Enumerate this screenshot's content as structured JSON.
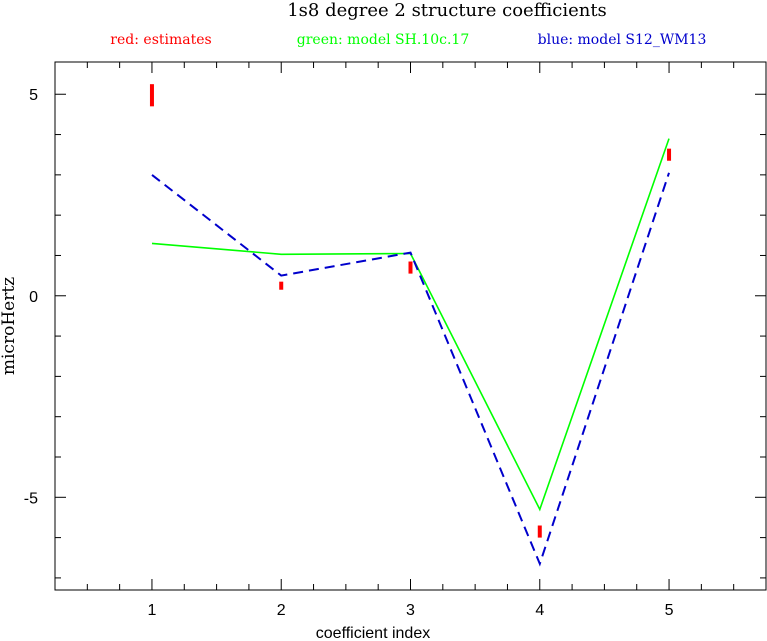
{
  "chart_data": {
    "type": "line",
    "title": "1s8 degree 2 structure coefficients",
    "legend": [
      {
        "label": "red: estimates",
        "color": "#ff0000"
      },
      {
        "label": "green: model SH.10c.17",
        "color": "#00ff00"
      },
      {
        "label": "blue: model S12_WM13",
        "color": "#0000cc"
      }
    ],
    "legend_placement": "top",
    "xlabel": "coefficient index",
    "ylabel": "microHertz",
    "xlim": [
      0.25,
      5.75
    ],
    "ylim": [
      -7.3,
      5.8
    ],
    "x_ticks": [
      1,
      2,
      3,
      4,
      5
    ],
    "x_minor_step": 0.25,
    "y_ticks": [
      -5,
      0,
      5
    ],
    "y_minor_step": 1,
    "grid": false,
    "estimates": [
      {
        "x": 1,
        "low": 4.7,
        "high": 5.25
      },
      {
        "x": 2,
        "low": 0.15,
        "high": 0.35
      },
      {
        "x": 3,
        "low": 0.55,
        "high": 0.85
      },
      {
        "x": 4,
        "low": -6.0,
        "high": -5.7
      },
      {
        "x": 5,
        "low": 3.35,
        "high": 3.65
      }
    ],
    "series": [
      {
        "name": "model SH.10c.17",
        "color": "#00ff00",
        "style": "solid",
        "x": [
          1,
          2,
          3,
          4,
          5
        ],
        "values": [
          1.3,
          1.03,
          1.05,
          -5.3,
          3.9
        ]
      },
      {
        "name": "model S12_WM13",
        "color": "#0000cc",
        "style": "dashed",
        "x": [
          1,
          2,
          3,
          4,
          5
        ],
        "values": [
          3.0,
          0.5,
          1.07,
          -6.65,
          3.05
        ]
      }
    ]
  }
}
